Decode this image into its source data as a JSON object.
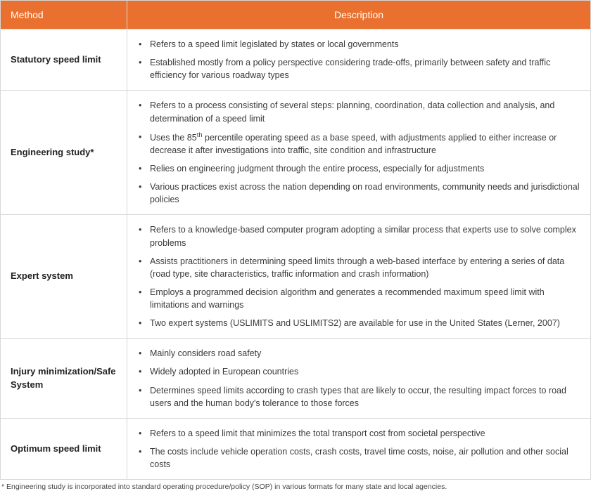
{
  "table": {
    "header_bg": "#e9702e",
    "header_fg": "#ffffff",
    "border_color": "#d8d8d8",
    "columns": {
      "method": "Method",
      "description": "Description"
    },
    "rows": [
      {
        "method_html": "Statutory speed limit",
        "bullets": [
          "Refers to a speed limit legislated by states or local governments",
          "Established mostly from a policy perspective considering trade-offs, primarily between safety and traffic efficiency for various roadway types"
        ]
      },
      {
        "method_html": "Engineering study*",
        "bullets": [
          "Refers to a process consisting of several steps: planning, coordination, data collection and analysis, and determination of a speed limit",
          "Uses the 85<sup>th</sup> percentile operating speed as a base speed, with adjustments applied to either increase or decrease it after investigations into traffic, site condition and infrastructure",
          "Relies on engineering judgment through the entire process, especially for adjustments",
          "Various practices exist across the nation depending on road environments, community needs and jurisdictional policies"
        ]
      },
      {
        "method_html": "Expert system",
        "bullets": [
          "Refers to a knowledge-based computer program adopting a similar process that experts use to solve complex problems",
          "Assists practitioners in determining speed limits through a web-based interface by entering a series of data (road type, site characteristics, traffic information and crash information)",
          "Employs a programmed decision algorithm and generates a recommended maximum speed limit with limitations and warnings",
          "Two expert systems (USLIMITS and USLIMITS2) are available for use in the United States (Lerner, 2007)"
        ]
      },
      {
        "method_html": "Injury minimization/Safe System",
        "bullets": [
          "Mainly considers road safety",
          "Widely adopted in European countries",
          "Determines speed limits according to crash types that are likely to occur, the resulting impact forces to road users and the human body's tolerance to those forces"
        ]
      },
      {
        "method_html": "Optimum speed limit",
        "bullets": [
          "Refers to a speed limit that minimizes the total transport cost from societal perspective",
          "The costs include vehicle operation costs, crash costs, travel time costs, noise, air pollution and other social costs"
        ]
      }
    ],
    "footnote": "* Engineering study is incorporated into standard operating procedure/policy (SOP) in various formats for many state and local agencies."
  }
}
